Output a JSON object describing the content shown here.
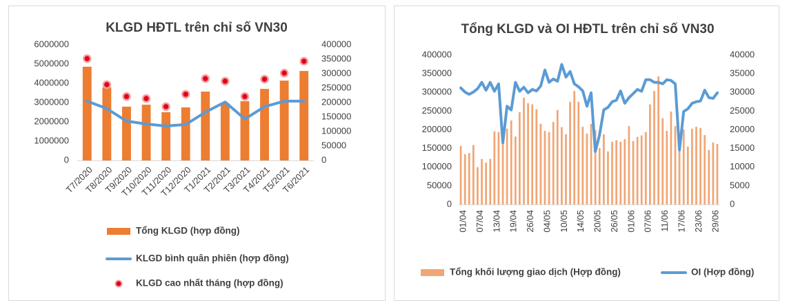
{
  "chart_data": [
    {
      "type": "bar",
      "title": "KLGD HĐTL trên chỉ số VN30",
      "categories": [
        "T7/2020",
        "T8/2020",
        "T9/2020",
        "T10/2020",
        "T11/2020",
        "T12/2020",
        "T1/2021",
        "T2/2021",
        "T3/2021",
        "T4/2021",
        "T5/2021",
        "T6/2021"
      ],
      "series": [
        {
          "name": "Tổng KLGD (hợp đồng)",
          "type": "bar",
          "color": "#ED7D31",
          "values": [
            4860000,
            3790000,
            2790000,
            2890000,
            2500000,
            2750000,
            3570000,
            2960000,
            3070000,
            3710000,
            4140000,
            4640000
          ]
        },
        {
          "name": "KLGD bình quân phiên (hợp đồng)",
          "type": "line",
          "axis": "y2",
          "color": "#5B9BD5",
          "values": [
            205000,
            179000,
            136000,
            126000,
            119000,
            124000,
            167000,
            202000,
            143000,
            186000,
            205000,
            205000
          ]
        },
        {
          "name": "KLGD cao nhất tháng (hợp đồng)",
          "type": "scatter",
          "axis": "y2",
          "color": "#E3001B",
          "values": [
            352000,
            262000,
            221000,
            214000,
            186000,
            229000,
            283000,
            274000,
            221000,
            281000,
            302000,
            343000
          ]
        }
      ],
      "ylim": [
        0,
        6000000
      ],
      "yticks": [
        0,
        1000000,
        2000000,
        3000000,
        4000000,
        5000000,
        6000000
      ],
      "y2lim": [
        0,
        400000
      ],
      "y2ticks": [
        0,
        50000,
        100000,
        150000,
        200000,
        250000,
        300000,
        350000,
        400000
      ],
      "grid": false
    },
    {
      "type": "bar",
      "title": "Tổng KLGD và OI HĐTL trên chỉ số VN30",
      "categories": [
        "01/04",
        null,
        null,
        null,
        "07/04",
        null,
        null,
        null,
        "13/04",
        null,
        null,
        null,
        "19/04",
        null,
        null,
        null,
        "26/04",
        null,
        null,
        null,
        "04/05",
        null,
        null,
        null,
        "10/05",
        null,
        null,
        null,
        "14/05",
        null,
        null,
        null,
        "20/05",
        null,
        null,
        null,
        "26/05",
        null,
        null,
        null,
        "01/06",
        null,
        null,
        null,
        "07/06",
        null,
        null,
        null,
        "11/06",
        null,
        null,
        null,
        "17/06",
        null,
        null,
        null,
        "23/06",
        null,
        null,
        null,
        "29/06",
        null
      ],
      "series": [
        {
          "name": "Tổng khối lượng giao dịch (Hợp đồng)",
          "type": "bar",
          "color": "#F0A675",
          "values": [
            157000,
            135000,
            138000,
            159000,
            100000,
            122000,
            112000,
            122000,
            196000,
            194000,
            168000,
            203000,
            225000,
            182000,
            247000,
            286000,
            271000,
            268000,
            255000,
            216000,
            197000,
            194000,
            221000,
            253000,
            207000,
            188000,
            275000,
            304000,
            275000,
            208000,
            190000,
            216000,
            199000,
            151000,
            188000,
            142000,
            168000,
            172000,
            168000,
            175000,
            210000,
            170000,
            181000,
            185000,
            194000,
            268000,
            304000,
            343000,
            231000,
            197000,
            249000,
            210000,
            151000,
            201000,
            155000,
            203000,
            208000,
            205000,
            186000,
            146000,
            166000,
            162000
          ]
        },
        {
          "name": "OI  (Hợp đồng)",
          "type": "line",
          "axis": "y2",
          "color": "#5B9BD5",
          "values": [
            31200,
            30100,
            29500,
            30100,
            31000,
            32700,
            30600,
            32700,
            30300,
            32300,
            16500,
            26300,
            25300,
            32700,
            30300,
            31400,
            29900,
            30800,
            30400,
            31700,
            36000,
            32700,
            33600,
            33000,
            37500,
            34100,
            35600,
            32300,
            31500,
            30400,
            26300,
            29900,
            14200,
            18600,
            25300,
            26000,
            27500,
            27900,
            30400,
            27100,
            28600,
            29700,
            30800,
            30300,
            33400,
            33400,
            32700,
            32700,
            32300,
            33400,
            33200,
            32300,
            14600,
            24900,
            25600,
            27100,
            27500,
            27700,
            30600,
            28600,
            28400,
            29900
          ]
        }
      ],
      "ylim": [
        0,
        400000
      ],
      "yticks": [
        0,
        50000,
        100000,
        150000,
        200000,
        250000,
        300000,
        350000,
        400000
      ],
      "y2lim": [
        0,
        40000
      ],
      "y2ticks": [
        0,
        5000,
        10000,
        15000,
        20000,
        25000,
        30000,
        35000,
        40000
      ],
      "grid": false
    }
  ]
}
